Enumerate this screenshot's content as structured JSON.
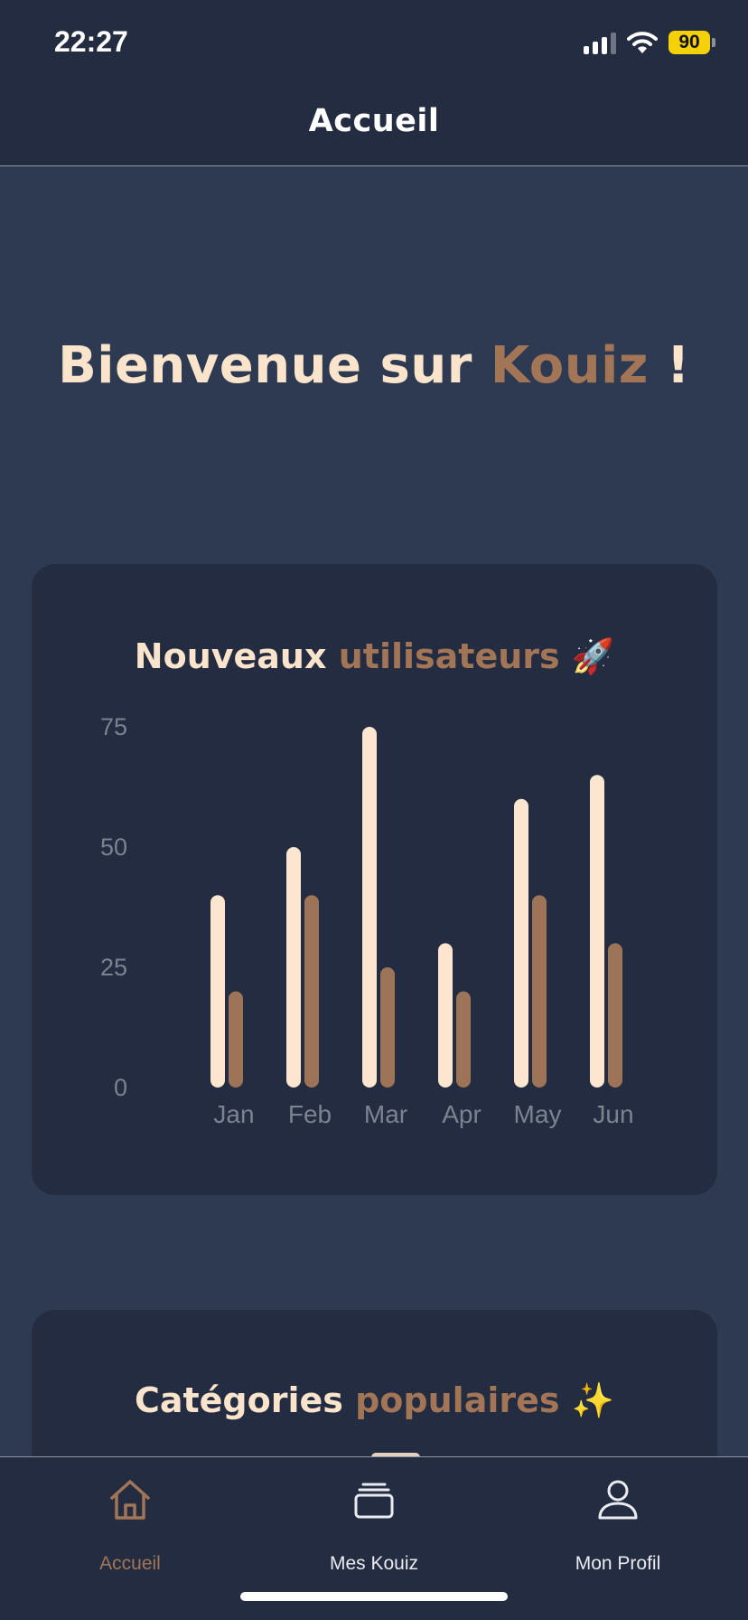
{
  "status_bar": {
    "time": "22:27",
    "battery": "90",
    "icons": [
      "signal-icon",
      "wifi-icon",
      "battery-icon"
    ]
  },
  "header": {
    "title": "Accueil"
  },
  "welcome": {
    "prefix": "Bienvenue sur ",
    "brand": "Kouiz",
    "suffix": " !"
  },
  "chart_card": {
    "title_part1": "Nouveaux ",
    "title_part2": "utilisateurs",
    "title_emoji": "🚀"
  },
  "chart_data": {
    "type": "bar",
    "categories": [
      "Jan",
      "Feb",
      "Mar",
      "Apr",
      "May",
      "Jun"
    ],
    "series": [
      {
        "values": [
          40,
          50,
          75,
          30,
          60,
          65
        ],
        "color": "#fde6cf"
      },
      {
        "values": [
          20,
          40,
          25,
          20,
          40,
          30
        ],
        "color": "#9e7459"
      }
    ],
    "yticks": [
      0,
      25,
      50,
      75
    ],
    "ylim": [
      0,
      75
    ],
    "grid": false,
    "legend": "none"
  },
  "categories_card": {
    "title_part1": "Catégories ",
    "title_part2": "populaires",
    "title_emoji": "✨"
  },
  "tabbar": {
    "tabs": [
      {
        "label": "Accueil",
        "icon": "home-icon",
        "active": true
      },
      {
        "label": "Mes Kouiz",
        "icon": "stack-icon",
        "active": false
      },
      {
        "label": "Mon Profil",
        "icon": "user-icon",
        "active": false
      }
    ]
  },
  "colors": {
    "background": "#2e3a52",
    "card": "#232c40",
    "cream": "#fbe4cc",
    "accent": "#a27557"
  }
}
